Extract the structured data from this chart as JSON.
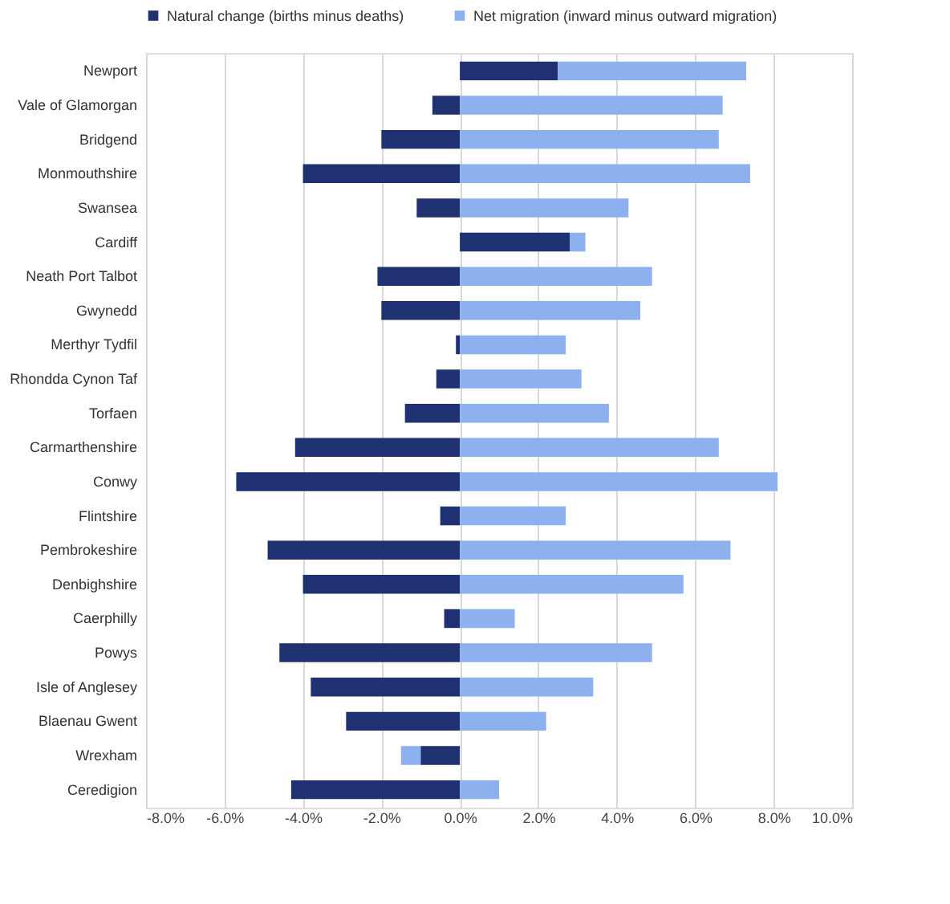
{
  "chart_data": {
    "type": "bar",
    "orientation": "horizontal",
    "stacked": true,
    "categories": [
      "Newport",
      "Vale of Glamorgan",
      "Bridgend",
      "Monmouthshire",
      "Swansea",
      "Cardiff",
      "Neath Port Talbot",
      "Gwynedd",
      "Merthyr Tydfil",
      "Rhondda Cynon Taf",
      "Torfaen",
      "Carmarthenshire",
      "Conwy",
      "Flintshire",
      "Pembrokeshire",
      "Denbighshire",
      "Caerphilly",
      "Powys",
      "Isle of Anglesey",
      "Blaenau Gwent",
      "Wrexham",
      "Ceredigion"
    ],
    "series": [
      {
        "name": "Natural change (births minus deaths)",
        "color": "#1f3170",
        "values": [
          2.5,
          -0.7,
          -2.0,
          -4.0,
          -1.1,
          2.8,
          -2.1,
          -2.0,
          -0.1,
          -0.6,
          -1.4,
          -4.2,
          -5.7,
          -0.5,
          -4.9,
          -4.0,
          -0.4,
          -4.6,
          -3.8,
          -2.9,
          -1.0,
          -4.3
        ]
      },
      {
        "name": "Net migration (inward minus outward migration)",
        "color": "#8db0ee",
        "values": [
          4.8,
          6.7,
          6.6,
          7.4,
          4.3,
          0.4,
          4.9,
          4.6,
          2.7,
          3.1,
          3.8,
          6.6,
          8.1,
          2.7,
          6.9,
          5.7,
          1.4,
          4.9,
          3.4,
          2.2,
          -0.5,
          1.0
        ]
      }
    ],
    "xlim": [
      -8,
      10
    ],
    "xticks": [
      {
        "value": -8,
        "label": "-8.0%"
      },
      {
        "value": -6,
        "label": "-6.0%"
      },
      {
        "value": -4,
        "label": "-4.0%"
      },
      {
        "value": -2,
        "label": "-2.0%"
      },
      {
        "value": 0,
        "label": "0.0%"
      },
      {
        "value": 2,
        "label": "2.0%"
      },
      {
        "value": 4,
        "label": "4.0%"
      },
      {
        "value": 6,
        "label": "6.0%"
      },
      {
        "value": 8,
        "label": "8.0%"
      },
      {
        "value": 10,
        "label": "10.0%"
      }
    ],
    "grid": "x",
    "legend": "top"
  }
}
